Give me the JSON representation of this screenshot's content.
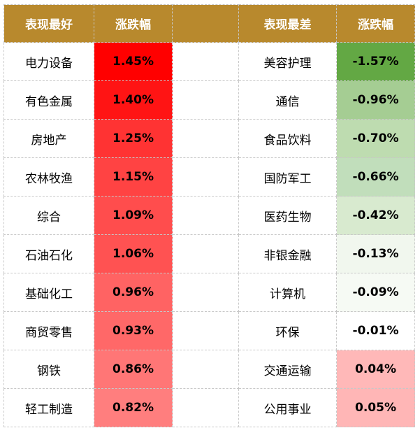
{
  "headers": {
    "best": "表现最好",
    "best_change": "涨跌幅",
    "worst": "表现最差",
    "worst_change": "涨跌幅"
  },
  "best": [
    {
      "sector": "电力设备",
      "change": "1.45%",
      "color": "#ff0000"
    },
    {
      "sector": "有色金属",
      "change": "1.40%",
      "color": "#ff1414"
    },
    {
      "sector": "房地产",
      "change": "1.25%",
      "color": "#ff3333"
    },
    {
      "sector": "农林牧渔",
      "change": "1.15%",
      "color": "#ff4343"
    },
    {
      "sector": "综合",
      "change": "1.09%",
      "color": "#ff4d4d"
    },
    {
      "sector": "石油石化",
      "change": "1.06%",
      "color": "#ff5252"
    },
    {
      "sector": "基础化工",
      "change": "0.96%",
      "color": "#ff6363"
    },
    {
      "sector": "商贸零售",
      "change": "0.93%",
      "color": "#ff6868"
    },
    {
      "sector": "钢铁",
      "change": "0.86%",
      "color": "#ff7676"
    },
    {
      "sector": "轻工制造",
      "change": "0.82%",
      "color": "#ff7e7e"
    }
  ],
  "worst": [
    {
      "sector": "美容护理",
      "change": "-1.57%",
      "color": "#63a844"
    },
    {
      "sector": "通信",
      "change": "-0.96%",
      "color": "#a5cd93"
    },
    {
      "sector": "食品饮料",
      "change": "-0.70%",
      "color": "#bedcb0"
    },
    {
      "sector": "国防军工",
      "change": "-0.66%",
      "color": "#c1debb"
    },
    {
      "sector": "医药生物",
      "change": "-0.42%",
      "color": "#d8eacf"
    },
    {
      "sector": "非银金融",
      "change": "-0.13%",
      "color": "#f1f7ee"
    },
    {
      "sector": "计算机",
      "change": "-0.09%",
      "color": "#f6faf4"
    },
    {
      "sector": "环保",
      "change": "-0.01%",
      "color": "#ffffff"
    },
    {
      "sector": "交通运输",
      "change": "0.04%",
      "color": "#ffb8b8"
    },
    {
      "sector": "公用事业",
      "change": "0.05%",
      "color": "#ffb6b6"
    }
  ]
}
